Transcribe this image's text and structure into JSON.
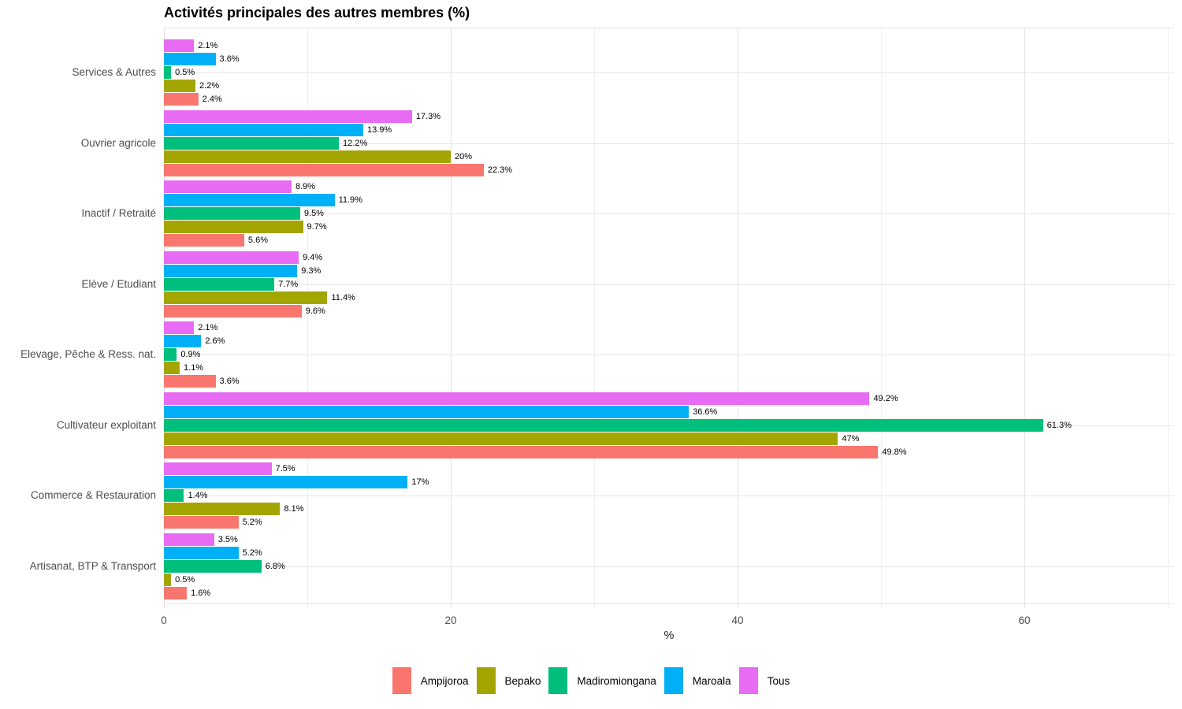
{
  "chart_data": {
    "type": "bar",
    "orientation": "horizontal",
    "title": "Activités principales des autres membres (%)",
    "xlabel": "%",
    "x_ticks": [
      "0",
      "20",
      "40",
      "60"
    ],
    "x_tick_values": [
      0,
      20,
      40,
      60
    ],
    "xlim": [
      0,
      70.4
    ],
    "grid": true,
    "legend_position": "bottom",
    "categories_top_to_bottom": [
      "Services & Autres",
      "Ouvrier agricole",
      "Inactif / Retraité",
      "Elève / Etudiant",
      "Elevage, Pêche & Ress. nat.",
      "Cultivateur exploitant",
      "Commerce & Restauration",
      "Artisanat, BTP & Transport"
    ],
    "bar_order_within_group_top_to_bottom": [
      "Tous",
      "Maroala",
      "Madiromiongana",
      "Bepako",
      "Ampijoroa"
    ],
    "series": [
      {
        "name": "Ampijoroa",
        "color": "#F8766D",
        "values": [
          2.4,
          22.3,
          5.6,
          9.6,
          3.6,
          49.8,
          5.2,
          1.6
        ],
        "labels": [
          "2.4%",
          "22.3%",
          "5.6%",
          "9.6%",
          "3.6%",
          "49.8%",
          "5.2%",
          "1.6%"
        ]
      },
      {
        "name": "Bepako",
        "color": "#A3A500",
        "values": [
          2.2,
          20,
          9.7,
          11.4,
          1.1,
          47,
          8.1,
          0.5
        ],
        "labels": [
          "2.2%",
          "20%",
          "9.7%",
          "11.4%",
          "1.1%",
          "47%",
          "8.1%",
          "0.5%"
        ]
      },
      {
        "name": "Madiromiongana",
        "color": "#00BF7D",
        "values": [
          0.5,
          12.2,
          9.5,
          7.7,
          0.9,
          61.3,
          1.4,
          6.8
        ],
        "labels": [
          "0.5%",
          "12.2%",
          "9.5%",
          "7.7%",
          "0.9%",
          "61.3%",
          "1.4%",
          "6.8%"
        ]
      },
      {
        "name": "Maroala",
        "color": "#00B0F6",
        "values": [
          3.6,
          13.9,
          11.9,
          9.3,
          2.6,
          36.6,
          17,
          5.2
        ],
        "labels": [
          "3.6%",
          "13.9%",
          "11.9%",
          "9.3%",
          "2.6%",
          "36.6%",
          "17%",
          "5.2%"
        ]
      },
      {
        "name": "Tous",
        "color": "#E76BF3",
        "values": [
          2.1,
          17.3,
          8.9,
          9.4,
          2.1,
          49.2,
          7.5,
          3.5
        ],
        "labels": [
          "2.1%",
          "17.3%",
          "8.9%",
          "9.4%",
          "2.1%",
          "49.2%",
          "7.5%",
          "3.5%"
        ]
      }
    ],
    "legend": [
      "Ampijoroa",
      "Bepako",
      "Madiromiongana",
      "Maroala",
      "Tous"
    ]
  },
  "colors": {
    "grid_major": "#e2e2e2",
    "grid_minor": "#efefef",
    "axis_text": "#4d4d4d",
    "value_label": "#000000",
    "background": "#ffffff"
  }
}
